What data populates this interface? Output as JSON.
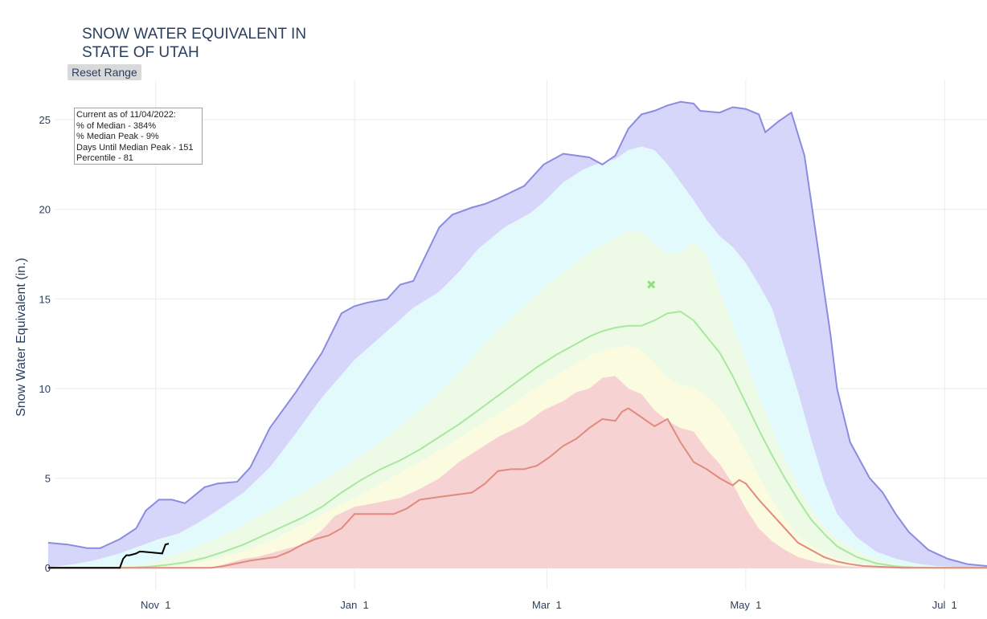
{
  "title": {
    "line1": "SNOW WATER EQUIVALENT IN",
    "line2": "STATE OF UTAH"
  },
  "reset_button": {
    "label": "Reset Range"
  },
  "info_box": {
    "line1": "Current as of 11/04/2022:",
    "line2": "% of Median - 384%",
    "line3": "% Median Peak - 9%",
    "line4": "Days Until Median Peak - 151",
    "line5": "Percentile - 81"
  },
  "chart_data": {
    "type": "area",
    "title": "SNOW WATER EQUIVALENT IN STATE OF UTAH",
    "ylabel": "Snow Water Equivalent (in.)",
    "xlabel": "",
    "x_unit": "days since Oct 1 (water year)",
    "xlim": [
      0,
      286
    ],
    "ylim": [
      -1.2,
      27.2
    ],
    "grid": true,
    "x_ticks": [
      {
        "label": "Nov  1",
        "day": 31
      },
      {
        "label": "Jan  1",
        "day": 92
      },
      {
        "label": "Mar  1",
        "day": 151
      },
      {
        "label": "May  1",
        "day": 212
      },
      {
        "label": "Jul  1",
        "day": 273
      }
    ],
    "y_ticks": [
      0,
      5,
      10,
      15,
      20,
      25
    ],
    "colors": {
      "max_band": "#d6d6fb",
      "max_line": "#8b8be0",
      "p90_band": "#e3fafc",
      "p70_band": "#edfbe6",
      "p50_band": "#fbfbe0",
      "p30_band": "#f6d3d2",
      "median_line": "#a7e89e",
      "min_line": "#e08a80",
      "current_line": "#000000",
      "peak_marker": "#8fe07f"
    },
    "series": [
      {
        "key": "max",
        "x": [
          -2,
          4,
          10,
          14,
          20,
          25,
          28,
          32,
          36,
          40,
          46,
          50,
          56,
          60,
          66,
          74,
          82,
          88,
          92,
          96,
          102,
          106,
          110,
          114,
          118,
          122,
          128,
          132,
          136,
          144,
          150,
          156,
          160,
          164,
          168,
          172,
          176,
          180,
          184,
          188,
          192,
          196,
          198,
          204,
          208,
          212,
          216,
          218,
          222,
          226,
          230,
          234,
          238,
          240,
          244,
          250,
          254,
          258,
          262,
          268,
          274,
          280,
          286
        ],
        "y": [
          1.4,
          1.3,
          1.1,
          1.1,
          1.6,
          2.2,
          3.2,
          3.8,
          3.8,
          3.6,
          4.5,
          4.7,
          4.8,
          5.6,
          7.8,
          9.8,
          12,
          14.2,
          14.6,
          14.8,
          15,
          15.8,
          16,
          17.5,
          19,
          19.7,
          20.1,
          20.3,
          20.6,
          21.3,
          22.5,
          23.1,
          23,
          22.9,
          22.5,
          23,
          24.5,
          25.3,
          25.5,
          25.8,
          26,
          25.9,
          25.5,
          25.4,
          25.7,
          25.6,
          25.3,
          24.3,
          24.9,
          25.4,
          23,
          18,
          13,
          10,
          7,
          5,
          4.2,
          3,
          2,
          1,
          0.5,
          0.2,
          0.1
        ]
      },
      {
        "key": "p90",
        "x": [
          -2,
          6,
          12,
          20,
          26,
          32,
          38,
          44,
          50,
          58,
          66,
          74,
          82,
          92,
          102,
          110,
          118,
          124,
          130,
          138,
          146,
          150,
          156,
          162,
          166,
          172,
          176,
          180,
          184,
          188,
          192,
          196,
          200,
          204,
          208,
          212,
          216,
          220,
          224,
          228,
          232,
          236,
          240,
          246,
          252,
          258,
          264,
          270,
          276,
          280,
          286
        ],
        "y": [
          0,
          0.2,
          0.4,
          0.8,
          1.2,
          1.6,
          1.9,
          2.5,
          3.2,
          4.2,
          5.6,
          7.5,
          9.5,
          11.6,
          13.2,
          14.5,
          15.4,
          16.5,
          17.8,
          19,
          19.8,
          20.4,
          21.5,
          22.2,
          22.5,
          22.8,
          23.3,
          23.5,
          23.3,
          22.5,
          21.5,
          20.5,
          19.4,
          18.5,
          17.9,
          17,
          15.8,
          14.5,
          12.2,
          9.8,
          7.2,
          4.8,
          3,
          1.7,
          0.9,
          0.5,
          0.25,
          0.1,
          0.05,
          0,
          0
        ]
      },
      {
        "key": "p70",
        "x": [
          -2,
          10,
          18,
          26,
          32,
          40,
          48,
          56,
          64,
          72,
          80,
          88,
          96,
          104,
          112,
          120,
          126,
          132,
          138,
          144,
          150,
          156,
          162,
          166,
          172,
          176,
          180,
          184,
          188,
          192,
          196,
          200,
          204,
          208,
          212,
          216,
          220,
          224,
          228,
          232,
          236,
          242,
          250,
          258,
          266,
          274,
          286
        ],
        "y": [
          0,
          0.05,
          0.1,
          0.2,
          0.4,
          0.9,
          1.5,
          2.2,
          3,
          3.8,
          4.6,
          5.5,
          6.5,
          7.6,
          8.8,
          10.1,
          11.3,
          12.5,
          13.6,
          14.6,
          15.6,
          16.5,
          17.3,
          17.8,
          18.4,
          18.8,
          18.7,
          18.1,
          17.5,
          17.6,
          18.2,
          17.4,
          15.5,
          13.5,
          11.6,
          9.6,
          7.8,
          6,
          4.6,
          3.3,
          2.3,
          1.4,
          0.6,
          0.2,
          0.05,
          0,
          0
        ]
      },
      {
        "key": "p50",
        "x": [
          -2,
          26,
          34,
          42,
          50,
          58,
          66,
          74,
          82,
          90,
          98,
          106,
          114,
          122,
          130,
          138,
          144,
          150,
          156,
          162,
          166,
          172,
          176,
          180,
          184,
          188,
          192,
          196,
          200,
          204,
          208,
          212,
          216,
          220,
          224,
          228,
          234,
          240,
          246,
          254,
          262,
          270,
          286
        ],
        "y": [
          0,
          0,
          0.1,
          0.2,
          0.5,
          0.9,
          1.5,
          2.2,
          3,
          3.7,
          4.5,
          5.3,
          6.1,
          7,
          7.9,
          8.8,
          9.6,
          10.3,
          11,
          11.6,
          12,
          12.3,
          12.4,
          12.1,
          11.4,
          10.6,
          10.2,
          10,
          9.6,
          8.9,
          7.8,
          6.5,
          5.1,
          3.8,
          2.7,
          1.8,
          1,
          0.5,
          0.2,
          0.05,
          0,
          0,
          0
        ]
      },
      {
        "key": "p30",
        "x": [
          -2,
          46,
          50,
          54,
          58,
          62,
          66,
          70,
          76,
          82,
          86,
          92,
          98,
          106,
          112,
          118,
          124,
          130,
          136,
          144,
          150,
          156,
          160,
          164,
          168,
          172,
          176,
          180,
          184,
          188,
          192,
          196,
          200,
          204,
          208,
          212,
          216,
          220,
          224,
          228,
          234,
          242,
          250,
          258,
          286
        ],
        "y": [
          0,
          0,
          0.1,
          0.3,
          0.5,
          0.6,
          0.8,
          1,
          1.3,
          2.1,
          2.9,
          3.4,
          3.6,
          3.9,
          4.4,
          5,
          5.9,
          6.6,
          7.3,
          8,
          8.8,
          9.3,
          9.8,
          10,
          10.6,
          10.7,
          10,
          9.7,
          8.8,
          8.2,
          7.8,
          7.6,
          6.6,
          5.8,
          4.7,
          3.3,
          2.2,
          1.5,
          1,
          0.6,
          0.3,
          0.1,
          0.02,
          0,
          0
        ]
      },
      {
        "key": "median",
        "x": [
          -2,
          22,
          28,
          34,
          40,
          46,
          52,
          58,
          64,
          70,
          76,
          82,
          88,
          94,
          100,
          106,
          112,
          118,
          124,
          130,
          136,
          142,
          148,
          154,
          160,
          164,
          168,
          172,
          176,
          180,
          184,
          188,
          192,
          196,
          200,
          204,
          208,
          212,
          216,
          220,
          224,
          228,
          232,
          236,
          240,
          246,
          252,
          258,
          264,
          270,
          286
        ],
        "y": [
          0,
          0,
          0.05,
          0.15,
          0.3,
          0.55,
          0.9,
          1.3,
          1.8,
          2.3,
          2.8,
          3.4,
          4.2,
          4.9,
          5.5,
          6,
          6.6,
          7.3,
          8,
          8.8,
          9.6,
          10.4,
          11.2,
          11.9,
          12.5,
          12.9,
          13.2,
          13.4,
          13.5,
          13.5,
          13.8,
          14.2,
          14.3,
          13.8,
          12.9,
          12,
          10.7,
          9.2,
          7.7,
          6.3,
          5,
          3.8,
          2.7,
          1.9,
          1.2,
          0.6,
          0.25,
          0.08,
          0.02,
          0,
          0
        ]
      },
      {
        "key": "min",
        "x": [
          -2,
          48,
          52,
          56,
          60,
          64,
          68,
          72,
          76,
          80,
          84,
          88,
          92,
          96,
          100,
          104,
          108,
          112,
          116,
          120,
          124,
          128,
          132,
          136,
          140,
          144,
          148,
          152,
          156,
          160,
          164,
          168,
          172,
          174,
          176,
          180,
          184,
          188,
          192,
          196,
          200,
          204,
          208,
          210,
          212,
          216,
          220,
          224,
          228,
          232,
          236,
          240,
          244,
          248,
          254,
          260,
          270,
          286
        ],
        "y": [
          0,
          0,
          0.1,
          0.25,
          0.4,
          0.5,
          0.6,
          0.9,
          1.3,
          1.6,
          1.8,
          2.2,
          3,
          3,
          3,
          3,
          3.3,
          3.8,
          3.9,
          4,
          4.1,
          4.2,
          4.7,
          5.4,
          5.5,
          5.5,
          5.7,
          6.2,
          6.8,
          7.2,
          7.8,
          8.3,
          8.2,
          8.7,
          8.9,
          8.4,
          7.9,
          8.3,
          7,
          5.9,
          5.5,
          5,
          4.6,
          4.9,
          4.7,
          3.8,
          3,
          2.2,
          1.4,
          1,
          0.6,
          0.35,
          0.2,
          0.1,
          0.05,
          0,
          0,
          0
        ]
      },
      {
        "key": "current",
        "x": [
          -2,
          20,
          21,
          22,
          23,
          25,
          26,
          27,
          30,
          33,
          34,
          35
        ],
        "y": [
          0,
          0,
          0.5,
          0.7,
          0.7,
          0.8,
          0.9,
          0.9,
          0.85,
          0.8,
          1.3,
          1.35
        ]
      }
    ],
    "median_peak": {
      "day": 183,
      "swe": 15.8
    }
  }
}
